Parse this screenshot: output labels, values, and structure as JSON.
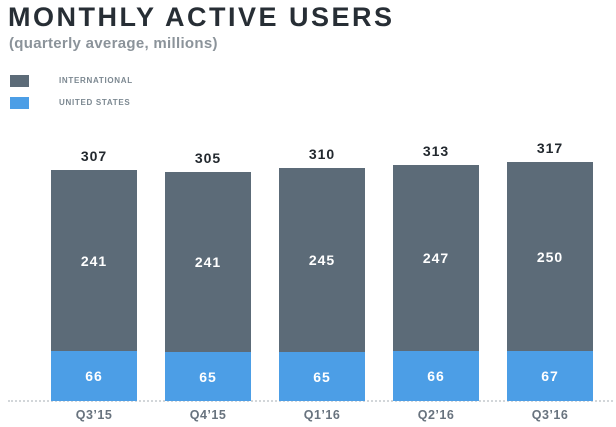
{
  "header": {
    "title": "MONTHLY ACTIVE USERS",
    "subtitle": "(quarterly average, millions)"
  },
  "colors": {
    "international": "#5C6B78",
    "united_states": "#4C9EE6",
    "title_text": "#272E35",
    "subtitle_text": "#8B939A",
    "legend_text": "#7C8891",
    "total_label_text": "#22282E",
    "bar_value_text": "#FFFFFF",
    "axis_label_text": "#68737E",
    "axis_line": "#D2D6D9"
  },
  "legend": {
    "items": [
      {
        "label": "INTERNATIONAL",
        "color_key": "international"
      },
      {
        "label": "UNITED STATES",
        "color_key": "united_states"
      }
    ]
  },
  "chart_data": {
    "type": "bar",
    "stacked": true,
    "title": "MONTHLY ACTIVE USERS",
    "subtitle": "(quarterly average, millions)",
    "categories": [
      "Q3’15",
      "Q4’15",
      "Q1’16",
      "Q2’16",
      "Q3’16"
    ],
    "series": [
      {
        "name": "INTERNATIONAL",
        "values": [
          241,
          241,
          245,
          247,
          250
        ]
      },
      {
        "name": "UNITED STATES",
        "values": [
          66,
          65,
          65,
          66,
          67
        ]
      }
    ],
    "totals": [
      307,
      305,
      310,
      313,
      317
    ],
    "ylim": [
      0,
      330
    ],
    "grid": false,
    "legend_position": "top-left",
    "value_labels": "inside-segments-and-total-on-top"
  }
}
